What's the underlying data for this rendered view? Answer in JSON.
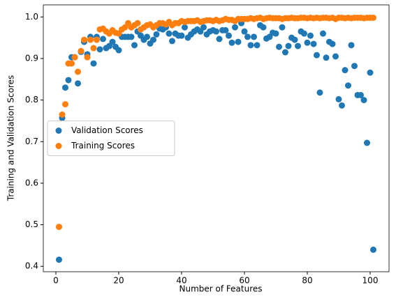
{
  "chart_data": {
    "type": "scatter",
    "xlabel": "Number of Features",
    "ylabel": "Training and Validation Scores",
    "x": [
      1,
      2,
      3,
      4,
      5,
      6,
      7,
      8,
      9,
      10,
      11,
      12,
      13,
      14,
      15,
      16,
      17,
      18,
      19,
      20,
      21,
      22,
      23,
      24,
      25,
      26,
      27,
      28,
      29,
      30,
      31,
      32,
      33,
      34,
      35,
      36,
      37,
      38,
      39,
      40,
      41,
      42,
      43,
      44,
      45,
      46,
      47,
      48,
      49,
      50,
      51,
      52,
      53,
      54,
      55,
      56,
      57,
      58,
      59,
      60,
      61,
      62,
      63,
      64,
      65,
      66,
      67,
      68,
      69,
      70,
      71,
      72,
      73,
      74,
      75,
      76,
      77,
      78,
      79,
      80,
      81,
      82,
      83,
      84,
      85,
      86,
      87,
      88,
      89,
      90,
      91,
      92,
      93,
      94,
      95,
      96,
      97,
      98,
      99,
      100,
      101
    ],
    "series": [
      {
        "name": "Validation Scores",
        "color": "#1f77b4",
        "values": [
          0.416,
          0.757,
          0.83,
          0.848,
          0.903,
          0.903,
          0.84,
          0.916,
          0.94,
          0.91,
          0.952,
          0.888,
          0.952,
          0.922,
          0.947,
          0.925,
          0.93,
          0.94,
          0.928,
          0.92,
          0.952,
          0.952,
          0.952,
          0.952,
          0.932,
          0.965,
          0.955,
          0.945,
          0.952,
          0.936,
          0.945,
          0.958,
          0.972,
          0.97,
          0.975,
          0.96,
          0.942,
          0.96,
          0.955,
          0.955,
          0.975,
          0.95,
          0.958,
          0.965,
          0.97,
          0.965,
          0.975,
          0.958,
          0.965,
          0.968,
          0.965,
          0.947,
          0.968,
          0.968,
          0.955,
          0.938,
          0.975,
          0.94,
          0.985,
          0.965,
          0.952,
          0.932,
          0.952,
          0.932,
          0.98,
          0.975,
          0.948,
          0.952,
          0.962,
          0.96,
          0.928,
          0.975,
          0.915,
          0.93,
          0.95,
          0.945,
          0.93,
          0.965,
          0.96,
          0.938,
          0.955,
          0.935,
          0.908,
          0.818,
          0.96,
          0.902,
          0.94,
          0.935,
          0.905,
          0.802,
          0.787,
          0.872,
          0.835,
          0.932,
          0.882,
          0.812,
          0.812,
          0.8,
          0.697,
          0.866,
          0.44
        ]
      },
      {
        "name": "Training Scores",
        "color": "#ff7f0e",
        "values": [
          0.495,
          0.765,
          0.79,
          0.888,
          0.888,
          0.903,
          0.868,
          0.918,
          0.945,
          0.903,
          0.945,
          0.925,
          0.945,
          0.97,
          0.972,
          0.965,
          0.96,
          0.968,
          0.962,
          0.96,
          0.97,
          0.975,
          0.985,
          0.975,
          0.98,
          0.985,
          0.97,
          0.975,
          0.98,
          0.982,
          0.975,
          0.98,
          0.985,
          0.985,
          0.982,
          0.988,
          0.98,
          0.985,
          0.985,
          0.99,
          0.988,
          0.99,
          0.99,
          0.99,
          0.992,
          0.988,
          0.99,
          0.992,
          0.992,
          0.99,
          0.993,
          0.99,
          0.992,
          0.995,
          0.993,
          0.993,
          0.99,
          0.995,
          0.995,
          0.995,
          0.995,
          0.997,
          0.995,
          0.997,
          0.998,
          0.995,
          0.997,
          0.998,
          0.997,
          0.997,
          0.997,
          0.995,
          0.997,
          0.997,
          0.998,
          0.997,
          0.997,
          0.998,
          0.998,
          0.997,
          0.998,
          0.997,
          0.998,
          0.997,
          0.998,
          0.998,
          0.997,
          0.998,
          0.995,
          0.998,
          0.998,
          0.997,
          0.998,
          0.997,
          0.998,
          0.998,
          0.998,
          0.997,
          0.998,
          0.998,
          0.998
        ]
      }
    ],
    "xlim": [
      -4,
      106
    ],
    "xticks": [
      0,
      20,
      40,
      60,
      80,
      100
    ],
    "ylim": [
      0.387,
      1.029
    ],
    "yticks": [
      0.4,
      0.5,
      0.6,
      0.7,
      0.8,
      0.9,
      {
        "value": 1,
        "label": "1.0"
      }
    ],
    "legend": "center left",
    "grid": false
  }
}
